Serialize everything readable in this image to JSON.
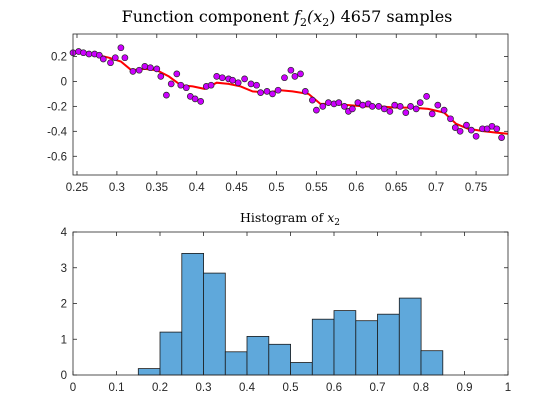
{
  "chart_data": [
    {
      "type": "scatter",
      "title_main": "Function component ",
      "title_math_f": "f",
      "title_math_sub": "2",
      "title_math_arg": "(x",
      "title_math_arg_sub": "2",
      "title_math_close": ")",
      "title_rest": " 4657 samples",
      "xlim": [
        0.245,
        0.79
      ],
      "ylim": [
        -0.75,
        0.38
      ],
      "xticks": [
        "0.25",
        "0.3",
        "0.35",
        "0.4",
        "0.45",
        "0.5",
        "0.55",
        "0.6",
        "0.65",
        "0.7",
        "0.75"
      ],
      "xtick_values": [
        0.25,
        0.3,
        0.35,
        0.4,
        0.45,
        0.5,
        0.55,
        0.6,
        0.65,
        0.7,
        0.75
      ],
      "yticks": [
        "0.2",
        "0",
        "-0.2",
        "-0.4",
        "-0.6"
      ],
      "ytick_values": [
        0.2,
        0,
        -0.2,
        -0.4,
        -0.6
      ],
      "points_color": "#cc00ff",
      "line_color": "#ff0000",
      "points": [
        [
          0.245,
          0.23
        ],
        [
          0.252,
          0.24
        ],
        [
          0.258,
          0.23
        ],
        [
          0.265,
          0.22
        ],
        [
          0.272,
          0.22
        ],
        [
          0.278,
          0.21
        ],
        [
          0.283,
          0.18
        ],
        [
          0.292,
          0.15
        ],
        [
          0.298,
          0.19
        ],
        [
          0.305,
          0.27
        ],
        [
          0.31,
          0.19
        ],
        [
          0.32,
          0.08
        ],
        [
          0.328,
          0.09
        ],
        [
          0.335,
          0.12
        ],
        [
          0.342,
          0.11
        ],
        [
          0.35,
          0.1
        ],
        [
          0.355,
          0.04
        ],
        [
          0.362,
          -0.11
        ],
        [
          0.368,
          -0.02
        ],
        [
          0.375,
          0.06
        ],
        [
          0.38,
          -0.03
        ],
        [
          0.387,
          -0.05
        ],
        [
          0.392,
          -0.12
        ],
        [
          0.398,
          -0.14
        ],
        [
          0.405,
          -0.16
        ],
        [
          0.412,
          -0.04
        ],
        [
          0.418,
          -0.03
        ],
        [
          0.425,
          0.04
        ],
        [
          0.432,
          0.03
        ],
        [
          0.44,
          0.02
        ],
        [
          0.445,
          0.01
        ],
        [
          0.452,
          -0.01
        ],
        [
          0.46,
          0.02
        ],
        [
          0.468,
          -0.02
        ],
        [
          0.475,
          -0.03
        ],
        [
          0.48,
          -0.09
        ],
        [
          0.488,
          -0.08
        ],
        [
          0.495,
          -0.1
        ],
        [
          0.502,
          -0.07
        ],
        [
          0.51,
          0.03
        ],
        [
          0.518,
          0.09
        ],
        [
          0.523,
          0.04
        ],
        [
          0.53,
          0.06
        ],
        [
          0.536,
          -0.08
        ],
        [
          0.545,
          -0.15
        ],
        [
          0.55,
          -0.23
        ],
        [
          0.558,
          -0.2
        ],
        [
          0.565,
          -0.17
        ],
        [
          0.572,
          -0.18
        ],
        [
          0.578,
          -0.17
        ],
        [
          0.585,
          -0.2
        ],
        [
          0.59,
          -0.24
        ],
        [
          0.595,
          -0.22
        ],
        [
          0.602,
          -0.17
        ],
        [
          0.608,
          -0.19
        ],
        [
          0.615,
          -0.18
        ],
        [
          0.62,
          -0.2
        ],
        [
          0.628,
          -0.2
        ],
        [
          0.635,
          -0.22
        ],
        [
          0.642,
          -0.24
        ],
        [
          0.648,
          -0.19
        ],
        [
          0.655,
          -0.2
        ],
        [
          0.662,
          -0.25
        ],
        [
          0.668,
          -0.2
        ],
        [
          0.675,
          -0.22
        ],
        [
          0.68,
          -0.17
        ],
        [
          0.688,
          -0.12
        ],
        [
          0.695,
          -0.26
        ],
        [
          0.702,
          -0.19
        ],
        [
          0.71,
          -0.23
        ],
        [
          0.718,
          -0.3
        ],
        [
          0.724,
          -0.37
        ],
        [
          0.73,
          -0.4
        ],
        [
          0.738,
          -0.35
        ],
        [
          0.744,
          -0.39
        ],
        [
          0.75,
          -0.44
        ],
        [
          0.758,
          -0.38
        ],
        [
          0.764,
          -0.38
        ],
        [
          0.77,
          -0.36
        ],
        [
          0.776,
          -0.38
        ],
        [
          0.782,
          -0.45
        ]
      ],
      "fit_line": [
        [
          0.245,
          0.23
        ],
        [
          0.27,
          0.22
        ],
        [
          0.29,
          0.19
        ],
        [
          0.305,
          0.16
        ],
        [
          0.318,
          0.09
        ],
        [
          0.335,
          0.1
        ],
        [
          0.35,
          0.09
        ],
        [
          0.365,
          0.04
        ],
        [
          0.38,
          -0.03
        ],
        [
          0.395,
          -0.04
        ],
        [
          0.41,
          -0.06
        ],
        [
          0.425,
          -0.01
        ],
        [
          0.44,
          -0.02
        ],
        [
          0.455,
          -0.04
        ],
        [
          0.47,
          -0.08
        ],
        [
          0.49,
          -0.09
        ],
        [
          0.505,
          -0.07
        ],
        [
          0.52,
          -0.08
        ],
        [
          0.54,
          -0.1
        ],
        [
          0.555,
          -0.18
        ],
        [
          0.57,
          -0.18
        ],
        [
          0.59,
          -0.19
        ],
        [
          0.61,
          -0.2
        ],
        [
          0.63,
          -0.2
        ],
        [
          0.65,
          -0.21
        ],
        [
          0.67,
          -0.21
        ],
        [
          0.69,
          -0.22
        ],
        [
          0.71,
          -0.25
        ],
        [
          0.725,
          -0.34
        ],
        [
          0.74,
          -0.38
        ],
        [
          0.76,
          -0.4
        ],
        [
          0.775,
          -0.41
        ],
        [
          0.79,
          -0.42
        ]
      ]
    },
    {
      "type": "bar",
      "title_main": "Histogram of ",
      "title_math_x": "x",
      "title_math_sub": "2",
      "xlim": [
        0,
        1
      ],
      "ylim": [
        0,
        4
      ],
      "xticks": [
        "0",
        "0.1",
        "0.2",
        "0.3",
        "0.4",
        "0.5",
        "0.6",
        "0.7",
        "0.8",
        "0.9",
        "1"
      ],
      "xtick_values": [
        0,
        0.1,
        0.2,
        0.3,
        0.4,
        0.5,
        0.6,
        0.7,
        0.8,
        0.9,
        1
      ],
      "yticks": [
        "0",
        "1",
        "2",
        "3",
        "4"
      ],
      "ytick_values": [
        0,
        1,
        2,
        3,
        4
      ],
      "bar_color": "#5fa8db",
      "bin_width": 0.05,
      "bins": [
        [
          0.15,
          0.18
        ],
        [
          0.2,
          1.2
        ],
        [
          0.25,
          3.4
        ],
        [
          0.3,
          2.85
        ],
        [
          0.35,
          0.65
        ],
        [
          0.4,
          1.08
        ],
        [
          0.45,
          0.86
        ],
        [
          0.5,
          0.35
        ],
        [
          0.55,
          1.56
        ],
        [
          0.6,
          1.8
        ],
        [
          0.65,
          1.52
        ],
        [
          0.7,
          1.7
        ],
        [
          0.75,
          2.15
        ],
        [
          0.8,
          0.68
        ]
      ]
    }
  ]
}
